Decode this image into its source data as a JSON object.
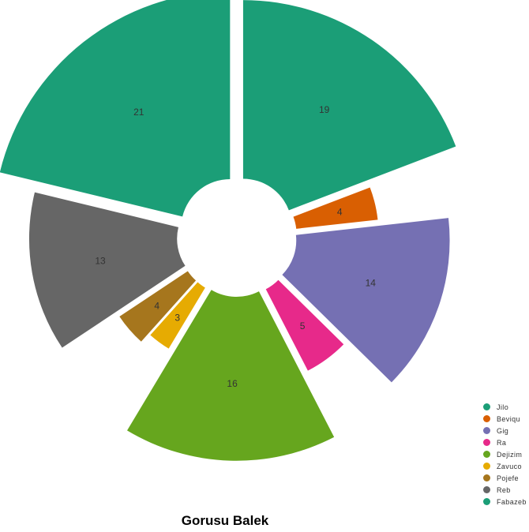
{
  "chart_data": {
    "type": "pie",
    "title": "Gorusu Balek",
    "slices": [
      {
        "label": "Jilo",
        "value": 19,
        "color": "#1b9e77"
      },
      {
        "label": "Beviqu",
        "value": 4,
        "color": "#d95f02"
      },
      {
        "label": "Gig",
        "value": 14,
        "color": "#7570b3"
      },
      {
        "label": "Ra",
        "value": 5,
        "color": "#e7298a"
      },
      {
        "label": "Dejizim",
        "value": 16,
        "color": "#66a61e"
      },
      {
        "label": "Zavuco",
        "value": 3,
        "color": "#e6ab02"
      },
      {
        "label": "Pojefe",
        "value": 4,
        "color": "#a6761d"
      },
      {
        "label": "Reb",
        "value": 13,
        "color": "#666666"
      },
      {
        "label": "Fabazeb",
        "value": 21,
        "color": "#1b9e77"
      }
    ],
    "legend_position": "bottom-right",
    "style": "donut-rose-exploded"
  }
}
